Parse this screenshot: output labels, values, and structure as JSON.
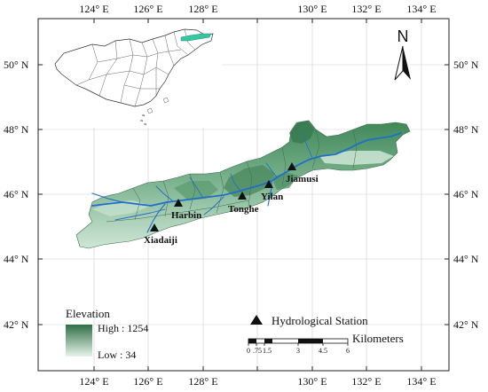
{
  "axes": {
    "top_lon_labels": [
      "124° E",
      "126° E",
      "128° E",
      "130° E",
      "132° E",
      "134° E"
    ],
    "bottom_lon_labels": [
      "124° E",
      "126° E",
      "128° E",
      "130° E",
      "132° E",
      "134° E"
    ],
    "left_lat_labels": [
      "50° N",
      "48° N",
      "46° N",
      "44° N",
      "42° N"
    ],
    "right_lat_labels": [
      "50° N",
      "48° N",
      "46° N",
      "44° N",
      "42° N"
    ]
  },
  "north_arrow": {
    "label": "N"
  },
  "stations": [
    {
      "name": "Jiamusi"
    },
    {
      "name": "Yilan"
    },
    {
      "name": "Tonghe"
    },
    {
      "name": "Harbin"
    },
    {
      "name": "Xiadaiji"
    }
  ],
  "legend": {
    "elevation_title": "Elevation",
    "high_label": "High : 1254",
    "low_label": "Low : 34",
    "station_label": "Hydrological Station",
    "scale_unit": "Kilometers",
    "scale_ticks": [
      "0",
      ".75",
      "1.5",
      "3",
      "4.5",
      "6"
    ]
  },
  "colors": {
    "elev_high": "#2f6f45",
    "elev_low": "#e6f4ea",
    "river": "#1f6fc8",
    "inset_highlight": "#35c7a2"
  }
}
